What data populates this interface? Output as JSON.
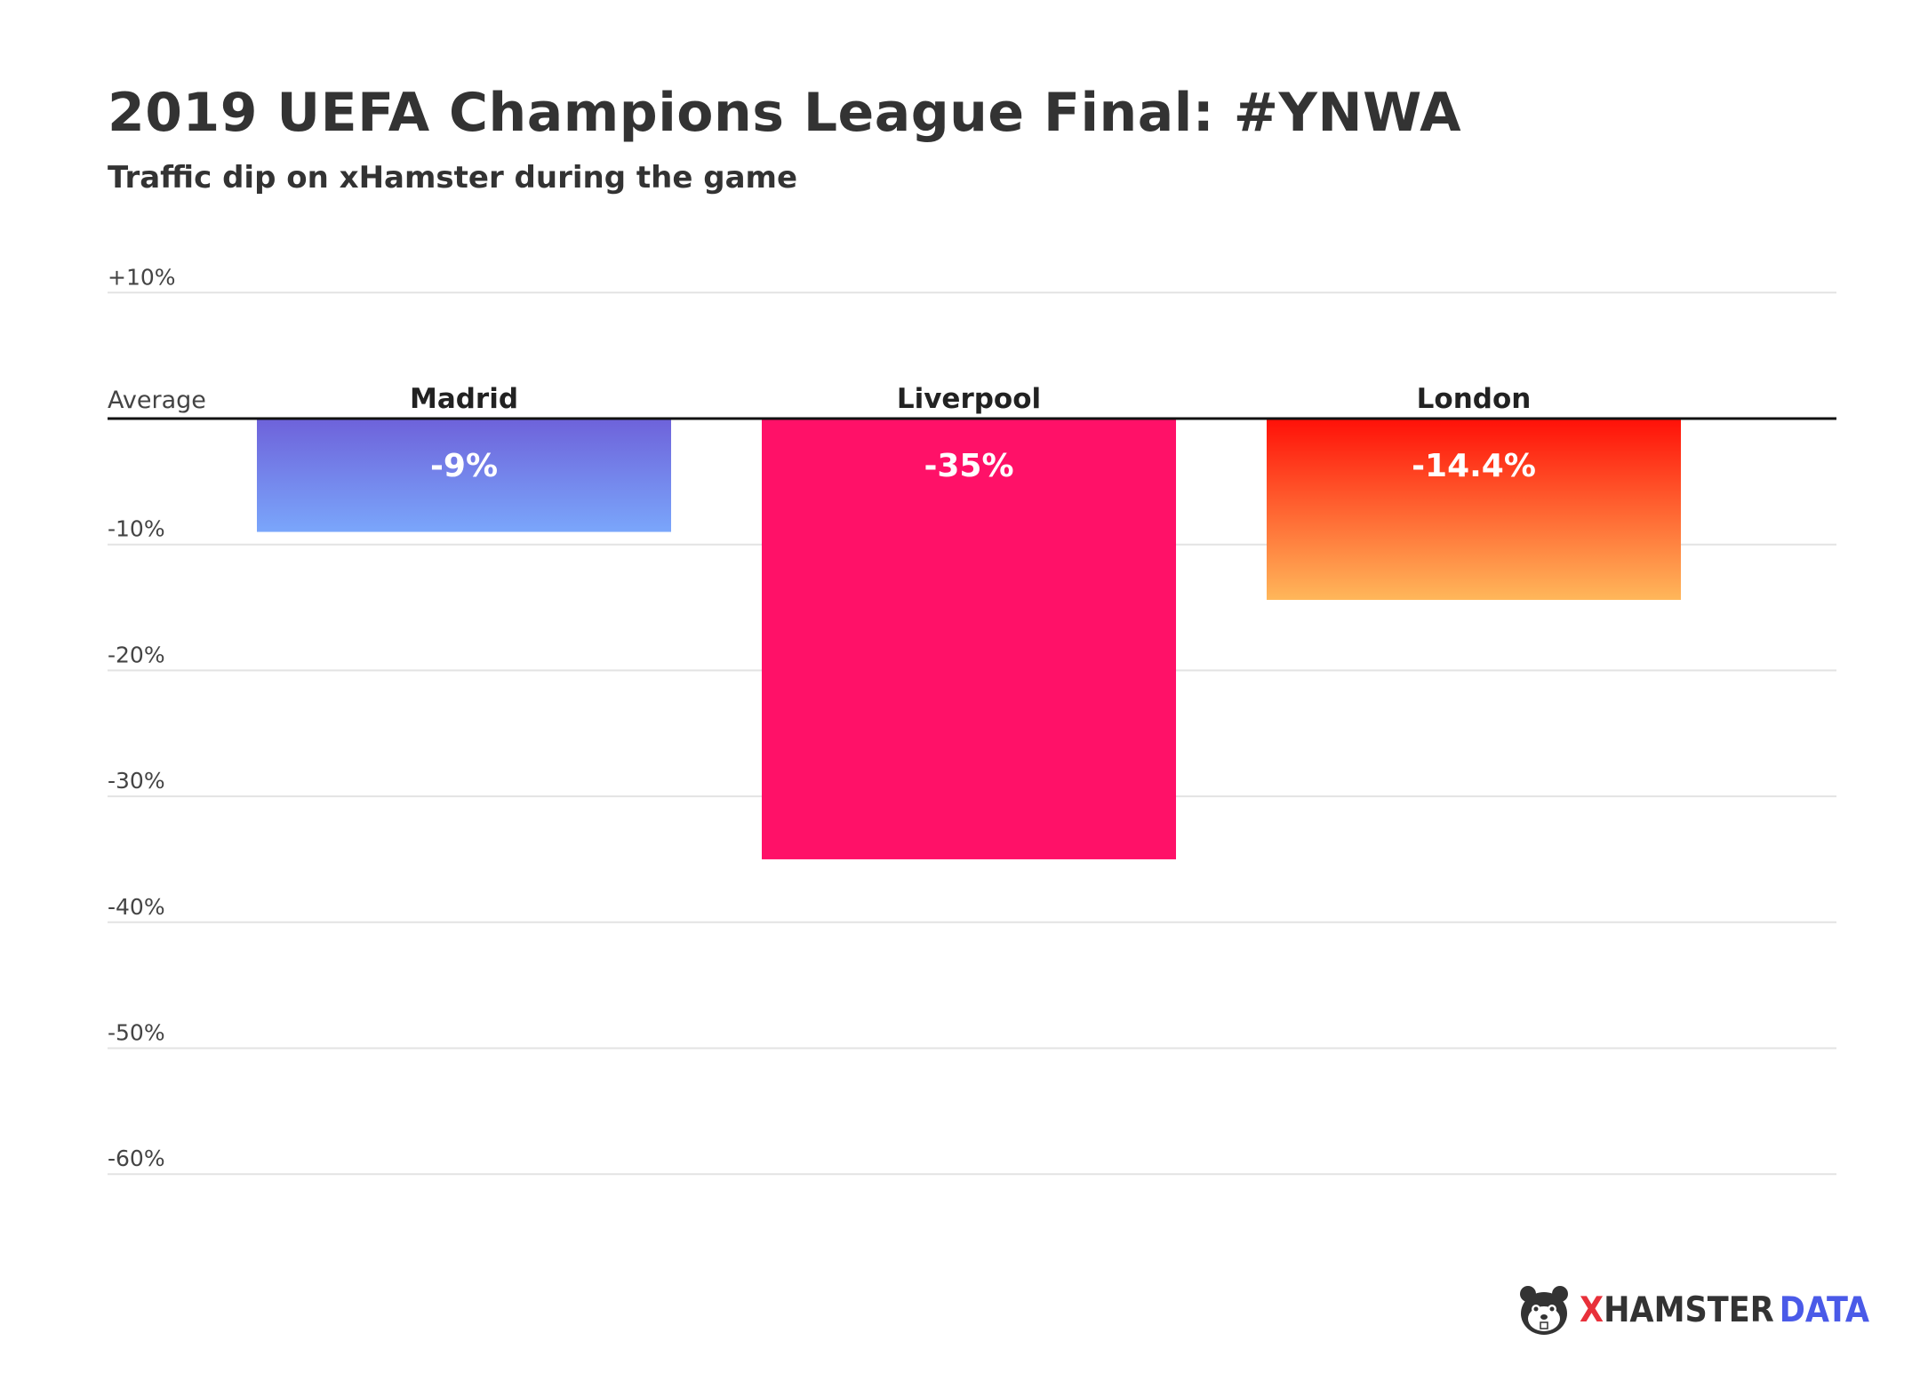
{
  "title": "2019 UEFA Champions League Final: #YNWA",
  "subtitle": "Traffic dip on xHamster during the game",
  "logo": {
    "x": "X",
    "hamster": "HAMSTER",
    "data": "DATA",
    "icon": "hamster-face-icon"
  },
  "chart_data": {
    "type": "bar",
    "baseline_label": "Average",
    "categories": [
      "Madrid",
      "Liverpool",
      "London"
    ],
    "values": [
      -9,
      -35,
      -14.4
    ],
    "value_labels": [
      "-9%",
      "-35%",
      "-14.4%"
    ],
    "ylim": [
      -60,
      10
    ],
    "yticks": [
      10,
      -10,
      -20,
      -30,
      -40,
      -50,
      -60
    ],
    "ytick_labels": [
      "+10%",
      "-10%",
      "-20%",
      "-30%",
      "-40%",
      "-50%",
      "-60%"
    ],
    "grid": true,
    "colors": {
      "Madrid": [
        "#6e62da",
        "#7aa6fb"
      ],
      "Liverpool": [
        "#ff1168",
        "#ff1168"
      ],
      "London": [
        "#ff1008",
        "#ffb75a"
      ]
    }
  }
}
